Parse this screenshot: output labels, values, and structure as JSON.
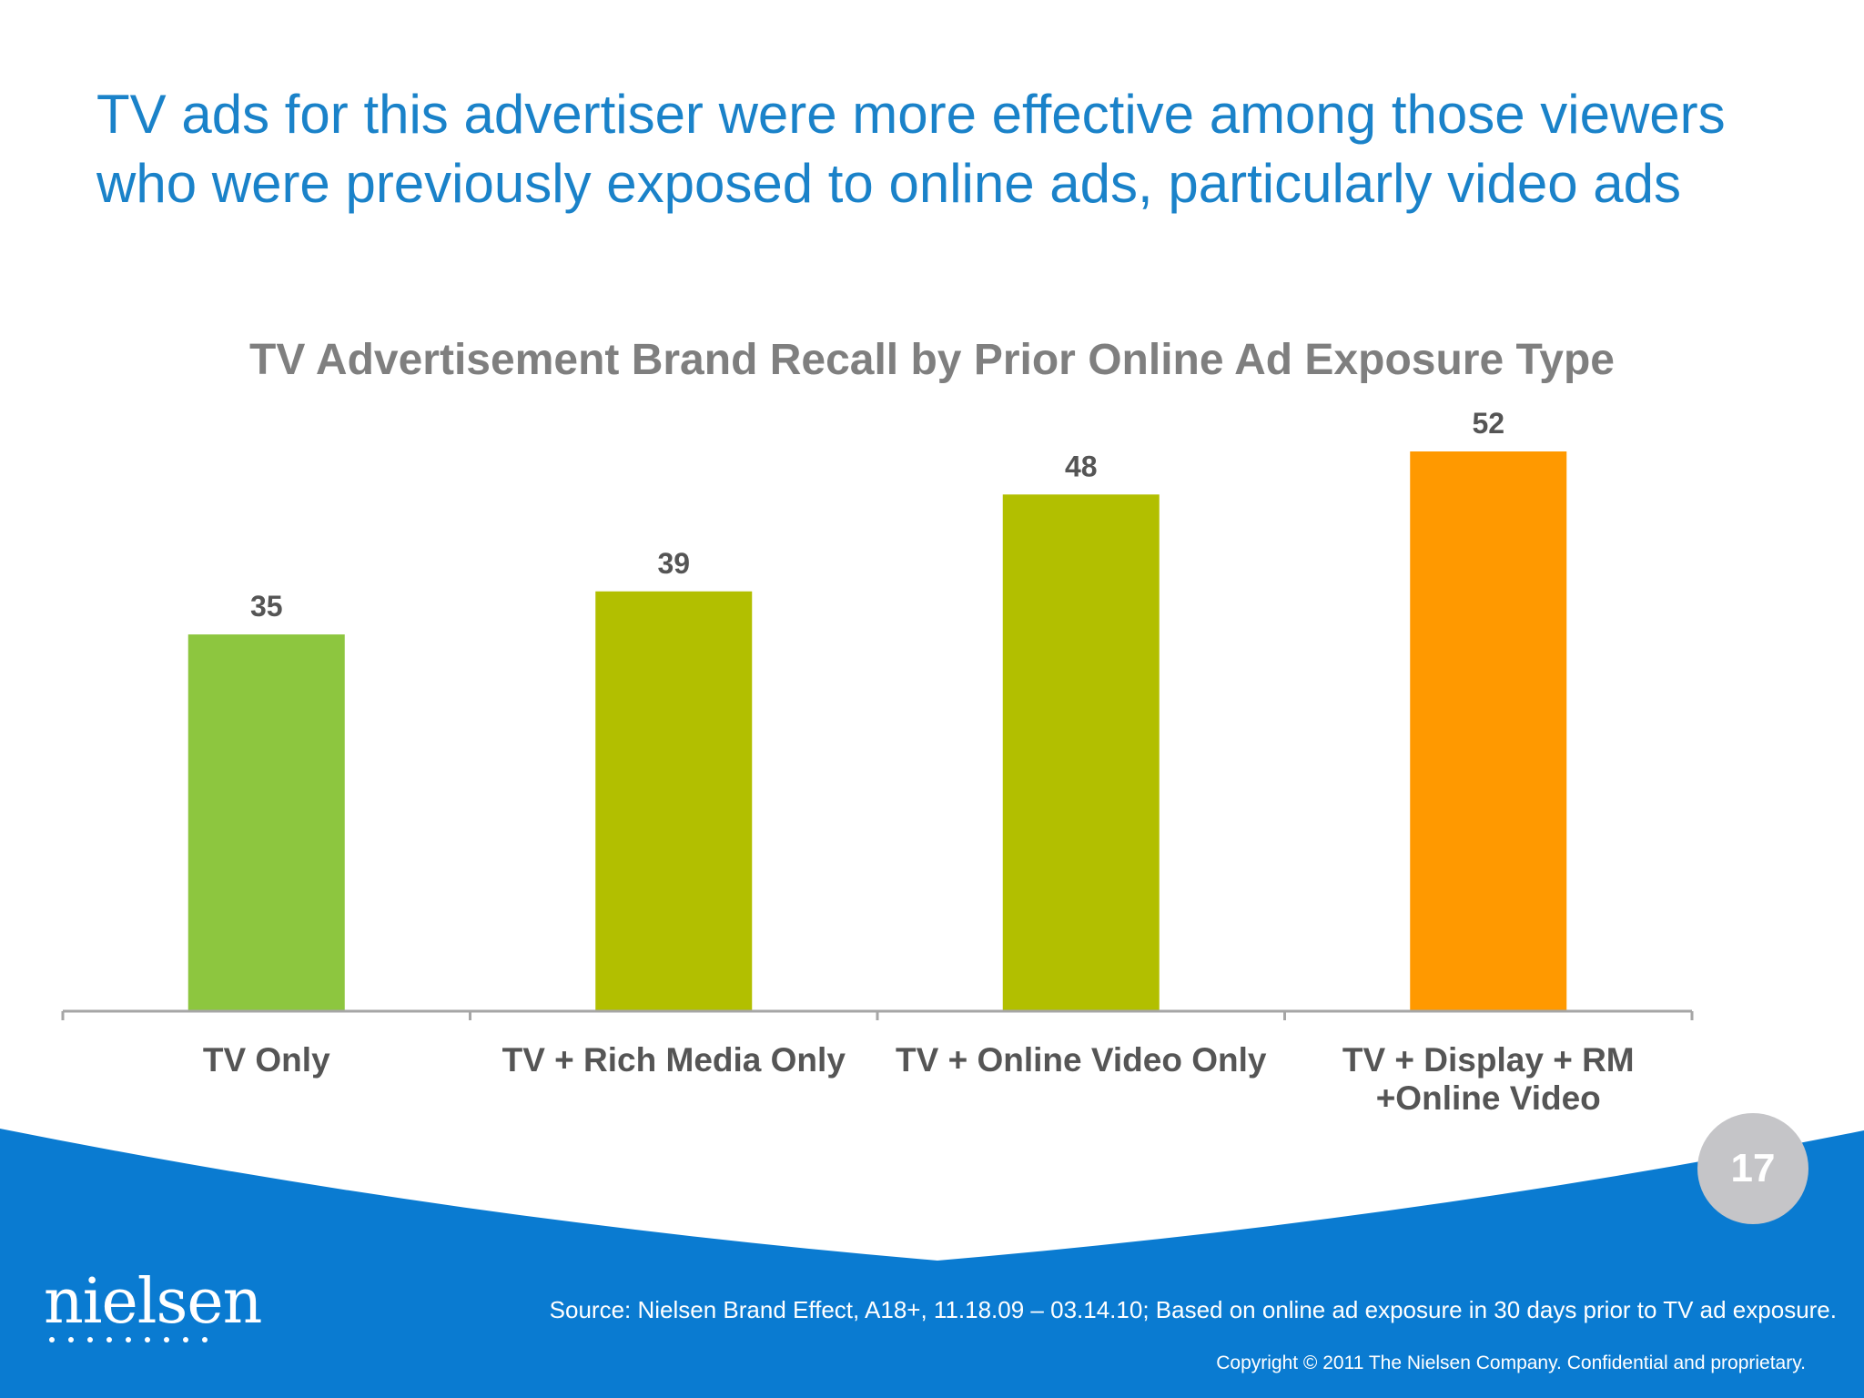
{
  "slide": {
    "title_lines": [
      "TV ads for this advertiser were more effective among those viewers",
      "who were previously exposed to online ads, particularly video ads"
    ],
    "source": "Source: Nielsen Brand Effect, A18+, 11.18.09 – 03.14.10; Based on online ad exposure in 30 days prior to TV ad exposure.",
    "copyright": "Copyright © 2011 The Nielsen Company. Confidential and proprietary.",
    "page_number": "17",
    "logo_text": "nielsen"
  },
  "colors": {
    "title_blue": "#1a82c9",
    "footer_blue": "#0a7bd1",
    "label_gray": "#555555"
  },
  "chart_data": {
    "type": "bar",
    "title": "TV Advertisement Brand Recall by Prior Online Ad Exposure Type",
    "categories": [
      [
        "TV Only"
      ],
      [
        "TV + Rich Media Only"
      ],
      [
        "TV + Online Video Only"
      ],
      [
        "TV + Display + RM",
        "+Online Video"
      ]
    ],
    "values": [
      35,
      39,
      48,
      52
    ],
    "bar_colors": [
      "#8dc63f",
      "#b2bf00",
      "#b2bf00",
      "#ff9900"
    ],
    "data_labels": [
      "35",
      "39",
      "48",
      "52"
    ],
    "ylim": [
      0,
      60
    ],
    "grid": false,
    "legend": "none"
  }
}
